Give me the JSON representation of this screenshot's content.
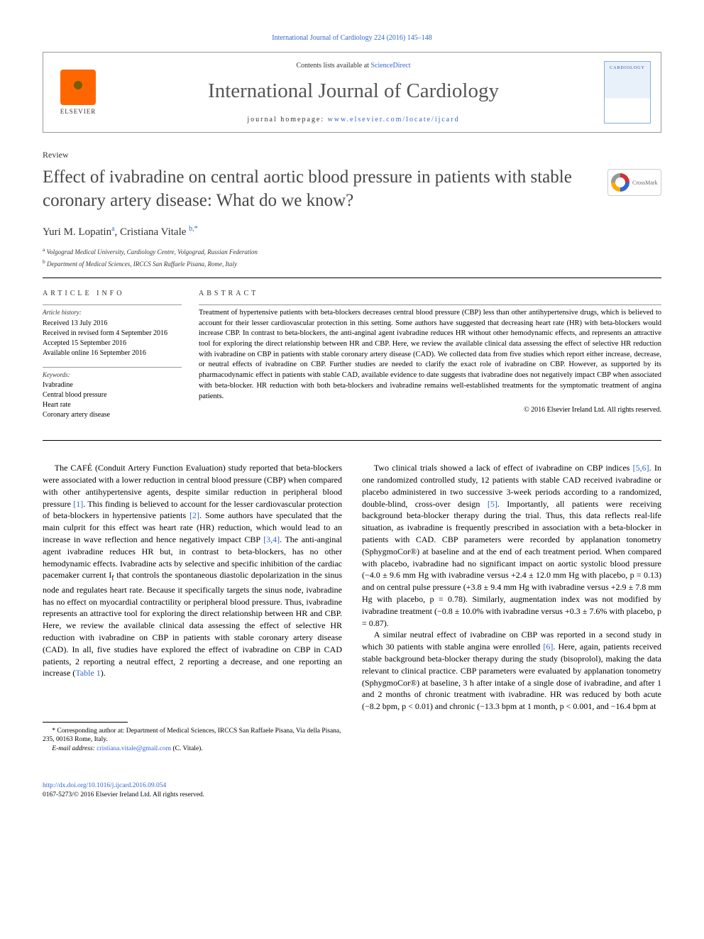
{
  "top_link": "International Journal of Cardiology 224 (2016) 145–148",
  "header": {
    "elsevier": "ELSEVIER",
    "contents_prefix": "Contents lists available at ",
    "contents_link": "ScienceDirect",
    "journal": "International Journal of Cardiology",
    "homepage_prefix": "journal homepage: ",
    "homepage_link": "www.elsevier.com/locate/ijcard",
    "cover_text": "CARDIOLOGY"
  },
  "article_type": "Review",
  "title": "Effect of ivabradine on central aortic blood pressure in patients with stable coronary artery disease: What do we know?",
  "crossmark": "CrossMark",
  "authors_html": "Yuri M. Lopatin ",
  "author1": "Yuri M. Lopatin",
  "author1_sup": "a",
  "author_sep": ", ",
  "author2": "Cristiana Vitale",
  "author2_sup": "b,",
  "author2_star": "*",
  "affiliations": {
    "a": "Volgograd Medical University, Cardiology Centre, Volgograd, Russian Federation",
    "b": "Department of Medical Sciences, IRCCS San Raffaele Pisana, Rome, Italy"
  },
  "info": {
    "heading": "article info",
    "history_label": "Article history:",
    "received": "Received 13 July 2016",
    "revised": "Received in revised form 4 September 2016",
    "accepted": "Accepted 15 September 2016",
    "online": "Available online 16 September 2016",
    "keywords_label": "Keywords:",
    "kw1": "Ivabradine",
    "kw2": "Central blood pressure",
    "kw3": "Heart rate",
    "kw4": "Coronary artery disease"
  },
  "abstract": {
    "heading": "abstract",
    "text": "Treatment of hypertensive patients with beta-blockers decreases central blood pressure (CBP) less than other antihypertensive drugs, which is believed to account for their lesser cardiovascular protection in this setting. Some authors have suggested that decreasing heart rate (HR) with beta-blockers would increase CBP. In contrast to beta-blockers, the anti-anginal agent ivabradine reduces HR without other hemodynamic effects, and represents an attractive tool for exploring the direct relationship between HR and CBP. Here, we review the available clinical data assessing the effect of selective HR reduction with ivabradine on CBP in patients with stable coronary artery disease (CAD). We collected data from five studies which report either increase, decrease, or neutral effects of ivabradine on CBP. Further studies are needed to clarify the exact role of ivabradine on CBP. However, as supported by its pharmacodynamic effect in patients with stable CAD, available evidence to date suggests that ivabradine does not negatively impact CBP when associated with beta-blocker. HR reduction with both beta-blockers and ivabradine remains well-established treatments for the symptomatic treatment of angina patients.",
    "copyright": "© 2016 Elsevier Ireland Ltd. All rights reserved."
  },
  "body": {
    "left_p1_a": "The CAFÉ (Conduit Artery Function Evaluation) study reported that beta-blockers were associated with a lower reduction in central blood pressure (CBP) when compared with other antihypertensive agents, despite similar reduction in peripheral blood pressure ",
    "left_ref1": "[1]",
    "left_p1_b": ". This finding is believed to account for the lesser cardiovascular protection of beta-blockers in hypertensive patients ",
    "left_ref2": "[2]",
    "left_p1_c": ". Some authors have speculated that the main culprit for this effect was heart rate (HR) reduction, which would lead to an increase in wave reflection and hence negatively impact CBP ",
    "left_ref34": "[3,4]",
    "left_p1_d": ". The anti-anginal agent ivabradine reduces HR but, in contrast to beta-blockers, has no other hemodynamic effects. Ivabradine acts by selective and specific inhibition of the cardiac pacemaker current I",
    "left_sub_f": "f",
    "left_p1_e": " that controls the spontaneous diastolic depolarization in the sinus node and regulates heart rate. Because it specifically targets the sinus node, ivabradine has no effect on myocardial contractility or peripheral blood pressure. Thus, ivabradine represents an attractive tool for exploring the direct relationship between HR and CBP. Here, we review the available clinical data assessing the effect of selective HR reduction with ivabradine on CBP in patients with stable coronary artery disease (CAD). In all, five studies have explored the effect of ivabradine on CBP in CAD patients, 2 reporting a neutral effect, 2 reporting a decrease, and one reporting an increase (",
    "left_tab1": "Table 1",
    "left_p1_f": ").",
    "right_p1_a": "Two clinical trials showed a lack of effect of ivabradine on CBP indices ",
    "right_ref56": "[5,6]",
    "right_p1_b": ". In one randomized controlled study, 12 patients with stable CAD received ivabradine or placebo administered in two successive 3-week periods according to a randomized, double-blind, cross-over design ",
    "right_ref5": "[5]",
    "right_p1_c": ". Importantly, all patients were receiving background beta-blocker therapy during the trial. Thus, this data reflects real-life situation, as ivabradine is frequently prescribed in association with a beta-blocker in patients with CAD. CBP parameters were recorded by applanation tonometry (SphygmoCor®) at baseline and at the end of each treatment period. When compared with placebo, ivabradine had no significant impact on aortic systolic blood pressure (−4.0 ± 9.6 mm Hg with ivabradine versus +2.4 ± 12.0 mm Hg with placebo, p = 0.13) and on central pulse pressure (+3.8 ± 9.4 mm Hg with ivabradine versus +2.9 ± 7.8 mm Hg with placebo, p = 0.78). Similarly, augmentation index was not modified by ivabradine treatment (−0.8 ± 10.0% with ivabradine versus +0.3 ± 7.6% with placebo, p = 0.87).",
    "right_p2_a": "A similar neutral effect of ivabradine on CBP was reported in a second study in which 30 patients with stable angina were enrolled ",
    "right_ref6": "[6]",
    "right_p2_b": ". Here, again, patients received stable background beta-blocker therapy during the study (bisoprolol), making the data relevant to clinical practice. CBP parameters were evaluated by applanation tonometry (SphygmoCor®) at baseline, 3 h after intake of a single dose of ivabradine, and after 1 and 2 months of chronic treatment with ivabradine. HR was reduced by both acute (−8.2 bpm, p < 0.01) and chronic (−13.3 bpm at 1 month, p < 0.001, and −16.4 bpm at"
  },
  "footnote": {
    "corr_label": "* Corresponding author at: Department of Medical Sciences, IRCCS San Raffaele Pisana, Via della Pisana, 235, 00163 Rome, Italy.",
    "email_label": "E-mail address: ",
    "email": "cristiana.vitale@gmail.com",
    "email_suffix": " (C. Vitale)."
  },
  "footer": {
    "doi": "http://dx.doi.org/10.1016/j.ijcard.2016.09.054",
    "issn": "0167-5273/© 2016 Elsevier Ireland Ltd. All rights reserved."
  },
  "colors": {
    "link": "#3366cc",
    "text": "#000000",
    "heading": "#484848",
    "rule": "#000000"
  }
}
